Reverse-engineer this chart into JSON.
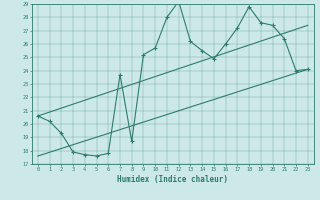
{
  "title": "",
  "xlabel": "Humidex (Indice chaleur)",
  "ylabel": "",
  "xlim": [
    -0.5,
    23.5
  ],
  "ylim": [
    17,
    29
  ],
  "xticks": [
    0,
    1,
    2,
    3,
    4,
    5,
    6,
    7,
    8,
    9,
    10,
    11,
    12,
    13,
    14,
    15,
    16,
    17,
    18,
    19,
    20,
    21,
    22,
    23
  ],
  "yticks": [
    17,
    18,
    19,
    20,
    21,
    22,
    23,
    24,
    25,
    26,
    27,
    28,
    29
  ],
  "bg_color": "#cce8e8",
  "line_color": "#2e7b6e",
  "series1_x": [
    0,
    1,
    2,
    3,
    4,
    5,
    6,
    7,
    8,
    9,
    10,
    11,
    12,
    13,
    14,
    15,
    16,
    17,
    18,
    19,
    20,
    21,
    22,
    23
  ],
  "series1_y": [
    20.6,
    20.2,
    19.3,
    17.9,
    17.7,
    17.6,
    17.8,
    23.7,
    18.7,
    25.2,
    25.7,
    28.0,
    29.2,
    26.2,
    25.5,
    24.9,
    26.0,
    27.2,
    28.8,
    27.6,
    27.4,
    26.4,
    24.0,
    24.1
  ],
  "series2_x": [
    0,
    23
  ],
  "series2_y": [
    20.6,
    27.4
  ],
  "series3_x": [
    0,
    23
  ],
  "series3_y": [
    17.6,
    24.1
  ]
}
